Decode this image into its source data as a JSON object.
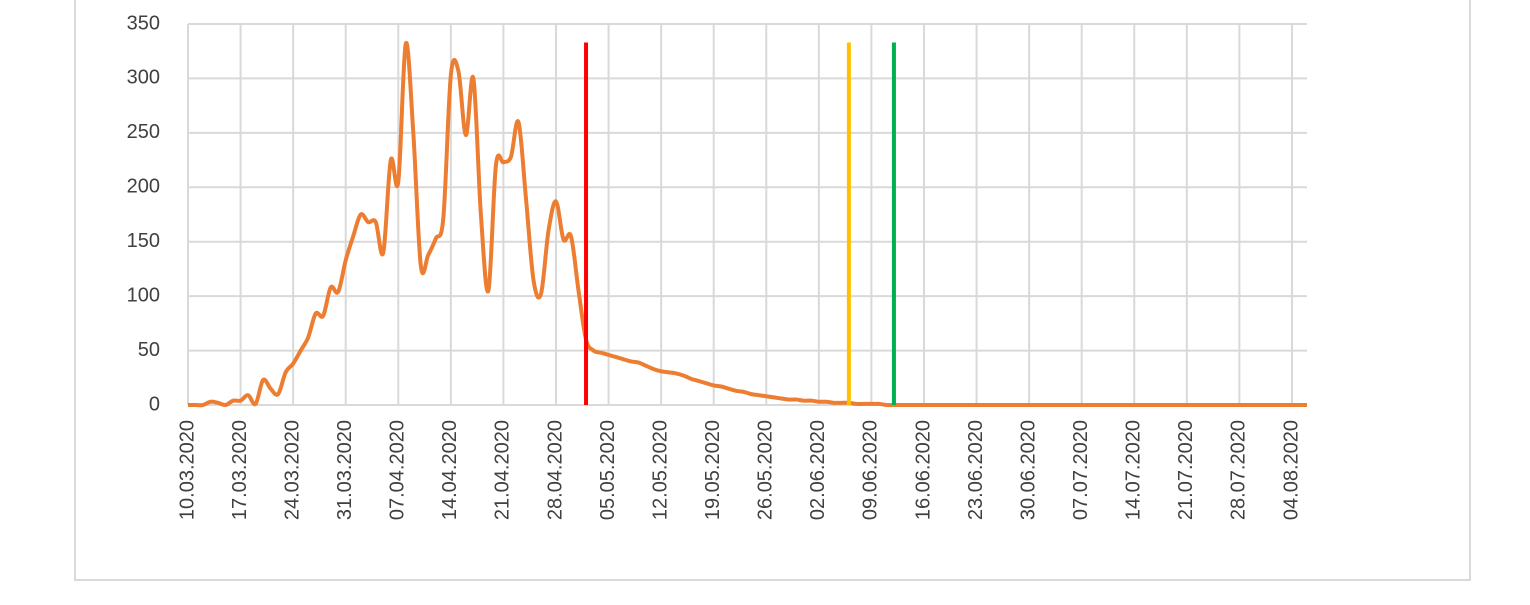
{
  "chart_data": {
    "type": "line",
    "categories": [
      "10.03.2020",
      null,
      null,
      null,
      null,
      null,
      null,
      "17.03.2020",
      null,
      null,
      null,
      null,
      null,
      null,
      "24.03.2020",
      null,
      null,
      null,
      null,
      null,
      null,
      "31.03.2020",
      null,
      null,
      null,
      null,
      null,
      null,
      "07.04.2020",
      null,
      null,
      null,
      null,
      null,
      null,
      "14.04.2020",
      null,
      null,
      null,
      null,
      null,
      null,
      "21.04.2020",
      null,
      null,
      null,
      null,
      null,
      null,
      "28.04.2020",
      null,
      null,
      null,
      null,
      null,
      null,
      "05.05.2020",
      null,
      null,
      null,
      null,
      null,
      null,
      "12.05.2020",
      null,
      null,
      null,
      null,
      null,
      null,
      "19.05.2020",
      null,
      null,
      null,
      null,
      null,
      null,
      "26.05.2020",
      null,
      null,
      null,
      null,
      null,
      null,
      "02.06.2020",
      null,
      null,
      null,
      null,
      null,
      null,
      "09.06.2020",
      null,
      null,
      null,
      null,
      null,
      null,
      "16.06.2020",
      null,
      null,
      null,
      null,
      null,
      null,
      "23.06.2020",
      null,
      null,
      null,
      null,
      null,
      null,
      "30.06.2020",
      null,
      null,
      null,
      null,
      null,
      null,
      "07.07.2020",
      null,
      null,
      null,
      null,
      null,
      null,
      "14.07.2020",
      null,
      null,
      null,
      null,
      null,
      null,
      "21.07.2020",
      null,
      null,
      null,
      null,
      null,
      null,
      "28.07.2020",
      null,
      null,
      null,
      null,
      null,
      null,
      "04.08.2020",
      null,
      null
    ],
    "values": [
      0,
      0,
      0,
      3,
      2,
      0,
      4,
      4,
      9,
      1,
      23,
      15,
      10,
      30,
      38,
      50,
      62,
      84,
      82,
      108,
      104,
      133,
      155,
      175,
      168,
      168,
      140,
      225,
      205,
      332,
      250,
      128,
      138,
      153,
      172,
      303,
      307,
      248,
      300,
      175,
      105,
      220,
      223,
      228,
      260,
      190,
      115,
      102,
      160,
      187,
      152,
      155,
      105,
      60,
      50,
      48,
      46,
      44,
      42,
      40,
      39,
      36,
      33,
      31,
      30,
      29,
      27,
      24,
      22,
      20,
      18,
      17,
      15,
      13,
      12,
      10,
      9,
      8,
      7,
      6,
      5,
      5,
      4,
      4,
      3,
      3,
      2,
      2,
      2,
      1,
      1,
      1,
      1,
      0,
      0,
      0,
      0,
      0,
      0,
      0,
      0,
      0,
      0,
      0,
      0,
      0,
      0,
      0,
      0,
      0,
      0,
      0,
      0,
      0,
      0,
      0,
      0,
      0,
      0,
      0,
      0,
      0,
      0,
      0,
      0,
      0,
      0,
      0,
      0,
      0,
      0,
      0,
      0,
      0,
      0,
      0,
      0,
      0,
      0,
      0,
      0,
      0,
      0,
      0,
      0,
      0,
      0,
      0,
      0,
      0
    ],
    "color": "#ed7d31",
    "markers": [
      {
        "index": 53,
        "top": 333,
        "color": "#ff0000"
      },
      {
        "index": 88,
        "top": 333,
        "color": "#ffc000"
      },
      {
        "index": 94,
        "top": 333,
        "color": "#00b050"
      }
    ],
    "ylim": [
      0,
      350
    ],
    "yticks": [
      0,
      50,
      100,
      150,
      200,
      250,
      300,
      350
    ],
    "grid": true
  }
}
